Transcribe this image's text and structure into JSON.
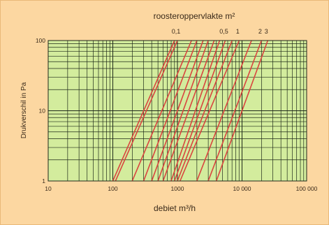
{
  "chart_data": {
    "type": "line",
    "title": "roosteroppervlakte m²",
    "xlabel": "debiet m³/h",
    "ylabel": "Drukverschil in Pa",
    "x_scale": "log",
    "y_scale": "log",
    "xlim": [
      10,
      100000
    ],
    "ylim": [
      1,
      100
    ],
    "x_ticks": [
      10,
      100,
      1000,
      10000,
      100000
    ],
    "x_tick_labels": [
      "10",
      "100",
      "1000",
      "10 000",
      "100 000"
    ],
    "y_ticks": [
      1,
      10,
      100
    ],
    "y_tick_labels": [
      "1",
      "10",
      "100"
    ],
    "area_labels": [
      {
        "text": "0,1",
        "series": 1
      },
      {
        "text": "0,5",
        "series": 8
      },
      {
        "text": "1",
        "series": 10
      },
      {
        "text": "2",
        "series": 12
      },
      {
        "text": "3",
        "series": 13
      }
    ],
    "grid": true,
    "series_color": "#d9453f",
    "series": [
      {
        "values": [
          [
            100,
            1
          ],
          [
            900,
            100
          ]
        ]
      },
      {
        "values": [
          [
            110,
            1
          ],
          [
            1000,
            100
          ]
        ]
      },
      {
        "values": [
          [
            200,
            1
          ],
          [
            1650,
            100
          ]
        ]
      },
      {
        "values": [
          [
            300,
            1
          ],
          [
            2000,
            100
          ]
        ]
      },
      {
        "values": [
          [
            400,
            1
          ],
          [
            2500,
            100
          ]
        ]
      },
      {
        "values": [
          [
            500,
            1
          ],
          [
            3000,
            100
          ]
        ]
      },
      {
        "values": [
          [
            600,
            1
          ],
          [
            3700,
            100
          ]
        ]
      },
      {
        "values": [
          [
            800,
            1
          ],
          [
            4500,
            100
          ]
        ]
      },
      {
        "values": [
          [
            900,
            1
          ],
          [
            5500,
            100
          ]
        ]
      },
      {
        "values": [
          [
            1000,
            1
          ],
          [
            7000,
            100
          ]
        ]
      },
      {
        "values": [
          [
            1100,
            1
          ],
          [
            9000,
            100
          ]
        ]
      },
      {
        "values": [
          [
            2000,
            1
          ],
          [
            14000,
            100
          ]
        ]
      },
      {
        "values": [
          [
            3000,
            1
          ],
          [
            20000,
            100
          ]
        ]
      },
      {
        "values": [
          [
            4000,
            1
          ],
          [
            25000,
            100
          ]
        ]
      }
    ]
  },
  "colors": {
    "background": "#fcd7a1",
    "plot_area": "#d3ec9d",
    "grid": "#1f2a1a",
    "curve": "#d9453f"
  }
}
